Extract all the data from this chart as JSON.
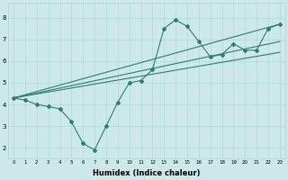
{
  "xlabel": "Humidex (Indice chaleur)",
  "ylabel": "",
  "background_color": "#cce8e8",
  "line_color": "#2e7d6e",
  "xlim": [
    -0.5,
    23.5
  ],
  "ylim": [
    1.5,
    8.7
  ],
  "xticks": [
    0,
    1,
    2,
    3,
    4,
    5,
    6,
    7,
    8,
    9,
    10,
    11,
    12,
    13,
    14,
    15,
    16,
    17,
    18,
    19,
    20,
    21,
    22,
    23
  ],
  "yticks": [
    2,
    3,
    4,
    5,
    6,
    7,
    8
  ],
  "series": [
    {
      "x": [
        0,
        1,
        2,
        3,
        4,
        5,
        6,
        7,
        8,
        9,
        10,
        11,
        12,
        13,
        14,
        15,
        16,
        17,
        18,
        19,
        20,
        21,
        22,
        23
      ],
      "y": [
        4.3,
        4.2,
        4.0,
        3.9,
        3.8,
        3.2,
        2.2,
        1.9,
        3.0,
        4.1,
        5.0,
        5.1,
        5.6,
        7.5,
        7.9,
        7.6,
        6.9,
        6.2,
        6.3,
        6.8,
        6.5,
        6.5,
        7.5,
        7.7
      ],
      "with_markers": true
    },
    {
      "x": [
        0,
        23
      ],
      "y": [
        4.3,
        6.4
      ],
      "with_markers": false
    },
    {
      "x": [
        0,
        23
      ],
      "y": [
        4.3,
        6.9
      ],
      "with_markers": false
    },
    {
      "x": [
        0,
        23
      ],
      "y": [
        4.3,
        7.7
      ],
      "with_markers": false
    }
  ]
}
